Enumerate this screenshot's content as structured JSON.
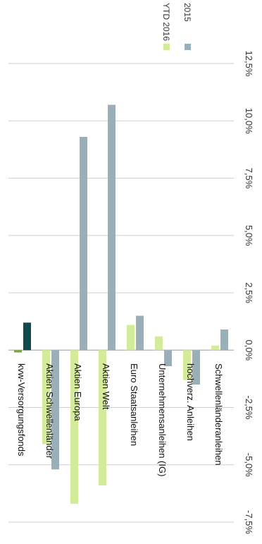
{
  "chart_data": {
    "type": "bar",
    "orientation": "rotated-90-clockwise",
    "categories": [
      "kvw-Versorgungsfonds",
      "Aktien Schwellenländer",
      "Aktien Europa",
      "Aktien Welt",
      "Euro Staatsanleihen",
      "Unternehmensanleihen (IG)",
      "hochverz. Anleihen",
      "Schwellenländeranleihen"
    ],
    "series": [
      {
        "name": "YTD 2016",
        "values": [
          -0.1,
          -4.1,
          -6.7,
          -5.9,
          1.1,
          0.6,
          -1.3,
          0.2
        ],
        "colors": [
          "#7aa63a",
          "#d4ec9a",
          "#d4ec9a",
          "#d4ec9a",
          "#d4ec9a",
          "#d4ec9a",
          "#d4ec9a",
          "#d4ec9a"
        ]
      },
      {
        "name": "2015",
        "values": [
          1.2,
          -5.2,
          9.3,
          10.7,
          1.5,
          -0.7,
          -1.5,
          0.9
        ],
        "colors": [
          "#0f4a4c",
          "#9ab0b8",
          "#9ab0b8",
          "#9ab0b8",
          "#9ab0b8",
          "#9ab0b8",
          "#9ab0b8",
          "#9ab0b8"
        ]
      }
    ],
    "ticks": [
      -7.5,
      -5.0,
      -2.5,
      0.0,
      2.5,
      5.0,
      7.5,
      10.0,
      12.5
    ],
    "tick_labels": [
      "-7,5%",
      "-5,0%",
      "-2,5%",
      "0,0%",
      "2,5%",
      "5,0%",
      "7,5%",
      "10,0%",
      "12,5%"
    ],
    "ylim": [
      -7.5,
      12.5
    ],
    "grid": true,
    "legend": "top-right",
    "colors": {
      "ytd": "#d4ec9a",
      "y2015": "#9ab0b8",
      "fund_ytd": "#7aa63a",
      "fund_2015": "#0f4a4c",
      "grid": "#cfcfcf"
    }
  }
}
